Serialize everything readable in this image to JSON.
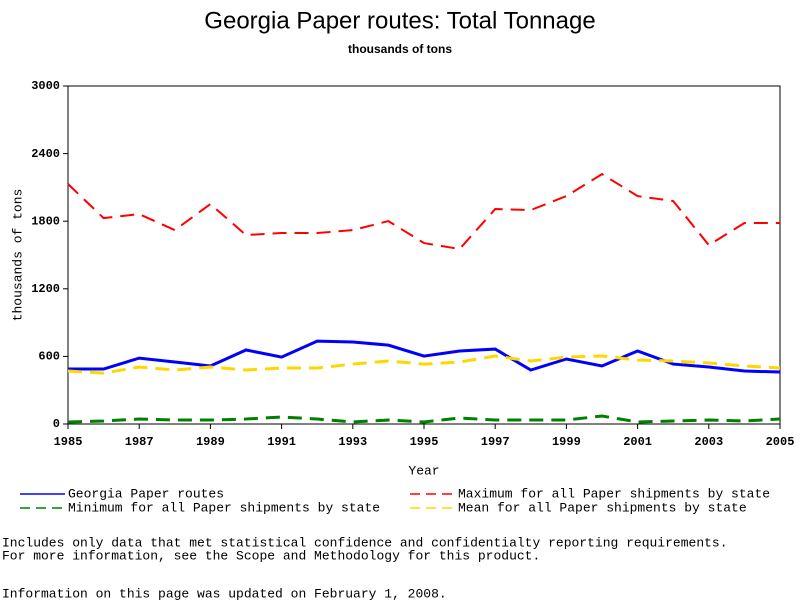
{
  "chart_data": {
    "type": "line",
    "title": "Georgia Paper routes: Total Tonnage",
    "subtitle": "thousands of tons",
    "x_label": "Year",
    "y_label": "thousands of tons",
    "x": [
      1985,
      1986,
      1987,
      1988,
      1989,
      1990,
      1991,
      1992,
      1993,
      1994,
      1995,
      1996,
      1997,
      1998,
      1999,
      2000,
      2001,
      2002,
      2003,
      2004,
      2005
    ],
    "xlim": [
      1985,
      2005
    ],
    "xticks": [
      1985,
      1987,
      1989,
      1991,
      1993,
      1995,
      1997,
      1999,
      2001,
      2003,
      2005
    ],
    "ylim": [
      0,
      3000
    ],
    "yticks": [
      0,
      600,
      1200,
      1800,
      2400,
      3000
    ],
    "series": [
      {
        "name": "Georgia Paper routes",
        "color": "#0000ff",
        "dash": false,
        "width": 3,
        "values": [
          488,
          488,
          585,
          550,
          515,
          657,
          594,
          736,
          728,
          700,
          603,
          648,
          665,
          479,
          577,
          515,
          648,
          532,
          506,
          470,
          461
        ]
      },
      {
        "name": "Maximum for all Paper shipments by state",
        "color": "#ff0000",
        "dash": true,
        "width": 2,
        "values": [
          2130,
          1828,
          1863,
          1721,
          1952,
          1677,
          1695,
          1695,
          1721,
          1801,
          1606,
          1553,
          1908,
          1899,
          2023,
          2218,
          2023,
          1979,
          1588,
          1784,
          1784
        ]
      },
      {
        "name": "Minimum for all Paper shipments by state",
        "color": "#008000",
        "dash": true,
        "width": 3,
        "values": [
          18,
          27,
          44,
          35,
          35,
          44,
          62,
          44,
          18,
          35,
          18,
          53,
          35,
          35,
          35,
          71,
          18,
          27,
          35,
          27,
          44
        ]
      },
      {
        "name": "Mean for all Paper shipments by state",
        "color": "#ffd700",
        "dash": true,
        "width": 3,
        "values": [
          470,
          452,
          506,
          479,
          506,
          479,
          497,
          497,
          532,
          559,
          532,
          550,
          603,
          559,
          594,
          603,
          568,
          559,
          541,
          515,
          497
        ]
      }
    ],
    "notes": [
      "Includes only data that met statistical confidence and confidentialty reporting requirements.",
      "For more information, see the Scope and Methodology for this product.",
      "Information on this page was updated on February 1, 2008."
    ]
  }
}
